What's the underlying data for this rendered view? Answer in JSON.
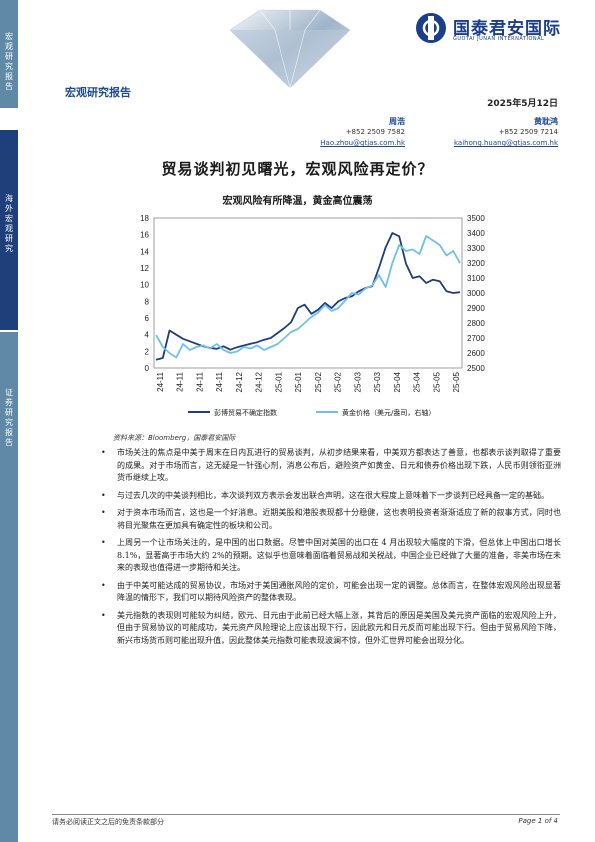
{
  "sidebar": [
    {
      "text": "宏观研究报告",
      "color": "#5f89a6"
    },
    {
      "text": "海外宏观研究",
      "color": "#1e3f7a"
    },
    {
      "text": "证券研究报告",
      "color": "#5f89a6"
    }
  ],
  "logo": {
    "cn": "国泰君安国际",
    "en": "GUOTAI JUNAN INTERNATIONAL"
  },
  "report_type": "宏观研究报告",
  "date": "2025年5月12日",
  "authors": [
    {
      "name": "周浩",
      "phone": "+852 2509 7582",
      "email": "Hao.zhou@gtjas.com.hk"
    },
    {
      "name": "黄耽鸿",
      "phone": "+852 2509 7214",
      "email": "kaihong.huang@gtjas.com.hk"
    }
  ],
  "title": "贸易谈判初见曙光，宏观风险再定价？",
  "chart_title": "宏观风险有所降温，黄金高位震荡",
  "chart_data": {
    "type": "line",
    "title": "宏观风险有所降温，黄金高位震荡",
    "x_ticks": [
      "24-11",
      "24-11",
      "24-11",
      "24-11",
      "24-12",
      "24-12",
      "25-01",
      "25-01",
      "25-02",
      "25-02",
      "25-03",
      "25-03",
      "25-04",
      "25-04",
      "25-05",
      "25-05"
    ],
    "ylim_left": [
      0,
      18
    ],
    "y_ticks_left": [
      0,
      2,
      4,
      6,
      8,
      10,
      12,
      14,
      16,
      18
    ],
    "ylim_right": [
      2500,
      3500
    ],
    "y_ticks_right": [
      2500,
      2600,
      2700,
      2800,
      2900,
      3000,
      3100,
      3200,
      3300,
      3400,
      3500
    ],
    "series": [
      {
        "name": "彭博贸易不确定指数",
        "axis": "left",
        "color": "#1f3d7a",
        "values": [
          1.0,
          1.2,
          4.5,
          4.0,
          3.5,
          3.2,
          2.9,
          2.6,
          2.4,
          2.3,
          2.6,
          2.2,
          2.5,
          2.7,
          2.9,
          3.1,
          3.4,
          3.6,
          4.2,
          4.8,
          5.5,
          7.2,
          7.6,
          6.5,
          7.0,
          7.8,
          7.2,
          8.0,
          8.4,
          8.6,
          9.2,
          9.6,
          9.8,
          12.0,
          14.5,
          16.2,
          15.8,
          12.5,
          10.8,
          11.0,
          10.2,
          10.6,
          10.4,
          9.2,
          9.0,
          9.1
        ]
      },
      {
        "name": "黄金价格（美元/盎司，右轴）",
        "axis": "right",
        "color": "#6ec1ea",
        "values": [
          2720,
          2640,
          2600,
          2570,
          2660,
          2620,
          2640,
          2650,
          2630,
          2660,
          2620,
          2600,
          2610,
          2640,
          2630,
          2650,
          2620,
          2640,
          2660,
          2700,
          2740,
          2760,
          2800,
          2840,
          2870,
          2920,
          2880,
          2900,
          2950,
          3000,
          2990,
          3030,
          3050,
          3120,
          3040,
          3200,
          3320,
          3280,
          3290,
          3260,
          3380,
          3350,
          3320,
          3250,
          3280,
          3200
        ]
      }
    ]
  },
  "source": "资料来源：Bloomberg，国泰君安国际",
  "bullets": [
    "市场关注的焦点是中美于周末在日内瓦进行的贸易谈判，从初步结果来看，中美双方都表达了善意，也都表示谈判取得了重要的成果。对于市场而言，这无疑是一针强心剂，消息公布后，避险资产如黄金、日元和债券价格出现下跌，人民币则领衔亚洲货币继续上攻。",
    "与过去几次的中美谈判相比，本次谈判双方表示会发出联合声明，这在很大程度上意味着下一步谈判已经具备一定的基础。",
    "对于资本市场而言，这也是一个好消息。近期美股和港股表现都十分稳健，这也表明投资者渐渐适应了新的叙事方式，同时也将目光聚焦在更加具有确定性的板块和公司。",
    "上周另一个让市场关注的，是中国的出口数据。尽管中国对美国的出口在 4 月出现较大幅度的下滑，但总体上中国出口增长 8.1%，显著高于市场大约 2%的预期。这似乎也意味着面临着贸易战和关税战，中国企业已经做了大量的准备，非美市场在未来的表现也值得进一步期待和关注。",
    "由于中美可能达成的贸易协议，市场对于美国通胀风险的定价，可能会出现一定的调整。总体而言，在整体宏观风险出现显著降温的情形下，我们可以期待风险资产的整体表现。",
    "美元指数的表现则可能较为纠结，欧元、日元由于此前已经大幅上涨，其背后的原因是美国及美元资产面临的宏观风险上升，但由于贸易协议的可能成功，美元资产风险理论上应该出现下行，因此欧元和日元反而可能出现下行。但由于贸易风险下降，新兴市场货币则可能出现升值，因此整体美元指数可能表现波澜不惊，但外汇世界可能会出现分化。"
  ],
  "footer": {
    "disclaimer": "请务必阅读正文之后的免责条款部分",
    "page": "Page 1 of 4"
  }
}
